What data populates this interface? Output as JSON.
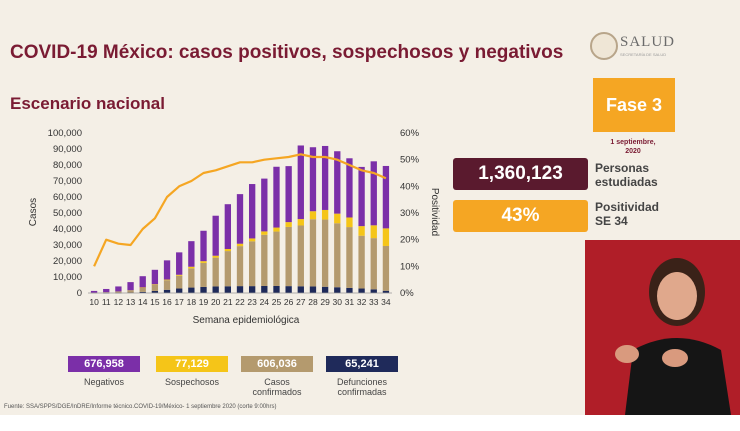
{
  "header": {
    "title": "COVID-19 México: casos positivos, sospechosos y negativos",
    "subtitle": "Escenario nacional",
    "logo_text": "SALUD",
    "logo_tagline": "SECRETARÍA DE SALUD"
  },
  "phase": {
    "label": "Fase 3",
    "date_line1": "1 septiembre,",
    "date_line2": "2020"
  },
  "kpis": {
    "studied": {
      "value": "1,360,123",
      "label_line1": "Personas",
      "label_line2": "estudiadas"
    },
    "positivity": {
      "value": "43%",
      "label_line1": "Positividad",
      "label_line2": "SE 34"
    }
  },
  "legend": {
    "negativos": {
      "value": "676,958",
      "label": "Negativos",
      "color": "#7b2fa8"
    },
    "sospechosos": {
      "value": "77,129",
      "label": "Sospechosos",
      "color": "#f5c518"
    },
    "confirmados": {
      "value": "606,036",
      "label_line1": "Casos",
      "label_line2": "confirmados",
      "color": "#b49a6e"
    },
    "defunciones": {
      "value": "65,241",
      "label_line1": "Defunciones",
      "label_line2": "confirmadas",
      "color": "#1f2a5a"
    }
  },
  "source": "Fuente: SSA/SPPS/DGE/InDRE/Informe técnico.COVID-19/México- 1 septiembre 2020 (corte 9:00hrs)",
  "chart_data": {
    "type": "bar",
    "xlabel": "Semana epidemiológica",
    "ylabel": "Casos",
    "y2label": "Positividad",
    "ylim": [
      0,
      100000
    ],
    "y2lim": [
      0,
      60
    ],
    "y_ticks": [
      "0",
      "10,000",
      "20,000",
      "30,000",
      "40,000",
      "50,000",
      "60,000",
      "70,000",
      "80,000",
      "90,000",
      "100,000"
    ],
    "y2_ticks": [
      "0%",
      "10%",
      "20%",
      "30%",
      "40%",
      "50%",
      "60%"
    ],
    "categories": [
      "10",
      "11",
      "12",
      "13",
      "14",
      "15",
      "16",
      "17",
      "18",
      "19",
      "20",
      "21",
      "22",
      "23",
      "24",
      "25",
      "26",
      "27",
      "28",
      "29",
      "30",
      "31",
      "32",
      "33",
      "34"
    ],
    "series": [
      {
        "name": "Defunciones",
        "color": "#1f2a5a",
        "values": [
          0,
          20,
          100,
          300,
          700,
          1300,
          2000,
          2800,
          3400,
          3800,
          4100,
          4200,
          4300,
          4300,
          4400,
          4400,
          4300,
          4200,
          4100,
          3900,
          3600,
          3200,
          2800,
          2300,
          1400
        ]
      },
      {
        "name": "Casos confirmados",
        "color": "#b49a6e",
        "values": [
          100,
          500,
          900,
          1500,
          2700,
          4000,
          6000,
          8000,
          12000,
          15000,
          18000,
          22000,
          25000,
          28000,
          32000,
          34000,
          37000,
          38000,
          42000,
          42000,
          40000,
          38000,
          33000,
          32000,
          28000
        ]
      },
      {
        "name": "Sospechosos",
        "color": "#f5c518",
        "values": [
          0,
          0,
          0,
          0,
          100,
          200,
          400,
          600,
          1000,
          1100,
          1200,
          1300,
          1500,
          1800,
          2100,
          2500,
          3000,
          4000,
          5000,
          6000,
          6000,
          6000,
          6000,
          8000,
          11000
        ]
      },
      {
        "name": "Negativos",
        "color": "#7b2fa8",
        "values": [
          1200,
          2000,
          3100,
          5000,
          7000,
          9000,
          12000,
          14000,
          16000,
          19000,
          25000,
          28000,
          31000,
          34000,
          33000,
          38000,
          35000,
          46000,
          40000,
          40000,
          39000,
          37000,
          37000,
          40000,
          39000
        ]
      },
      {
        "name": "Positividad",
        "type": "line",
        "axis": "right",
        "color": "#f5a623",
        "values": [
          10,
          20,
          18.5,
          18,
          24,
          28,
          36,
          40,
          42,
          45,
          46,
          47.5,
          49,
          49,
          50,
          50.5,
          51,
          52,
          51,
          51,
          50,
          48,
          46,
          45,
          43
        ]
      }
    ]
  }
}
